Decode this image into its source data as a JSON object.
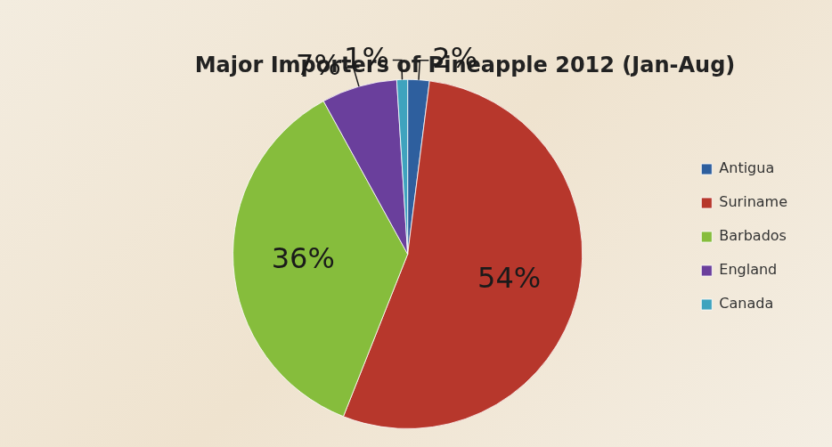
{
  "chart_data": {
    "type": "pie",
    "title": "Major Importers of Pineapple 2012 (Jan-Aug)",
    "categories": [
      "Antigua",
      "Suriname",
      "Barbados",
      "England",
      "Canada"
    ],
    "values": [
      2,
      54,
      36,
      7,
      1
    ],
    "value_labels": [
      "2%",
      "54%",
      "36%",
      "7%",
      "1%"
    ],
    "colors": [
      "#2e5f9e",
      "#b7372c",
      "#86bd3c",
      "#6a3f9c",
      "#3fa3be"
    ],
    "legend": "right",
    "data_labels": true
  }
}
